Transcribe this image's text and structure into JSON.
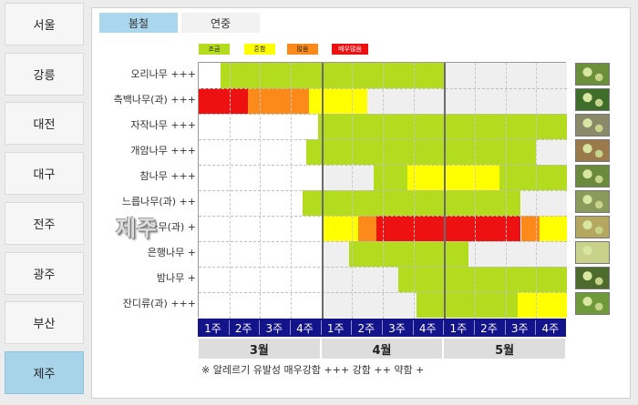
{
  "sidebar": {
    "cities": [
      {
        "label": "서울",
        "active": false
      },
      {
        "label": "강릉",
        "active": false
      },
      {
        "label": "대전",
        "active": false
      },
      {
        "label": "대구",
        "active": false
      },
      {
        "label": "전주",
        "active": false
      },
      {
        "label": "광주",
        "active": false
      },
      {
        "label": "부산",
        "active": false
      },
      {
        "label": "제주",
        "active": true
      }
    ]
  },
  "tabs": [
    {
      "label": "봄철",
      "active": true
    },
    {
      "label": "연중",
      "active": false
    }
  ],
  "legend": [
    {
      "label": "조금",
      "color": "#b4dc1e"
    },
    {
      "label": "흔함",
      "color": "#ffff00"
    },
    {
      "label": "많음",
      "color": "#fb8a1a"
    },
    {
      "label": "매우많음",
      "color": "#ee1111"
    }
  ],
  "colors": {
    "none": "#ffffff",
    "unrecorded": "#efefef"
  },
  "weeks": [
    "1주",
    "2주",
    "3주",
    "4주",
    "1주",
    "2주",
    "3주",
    "4주",
    "1주",
    "2주",
    "3주",
    "4주"
  ],
  "months": [
    "3월",
    "4월",
    "5월"
  ],
  "watermark": "제주",
  "plants": [
    {
      "label": "오리나무 +++",
      "icon": "alder-photo-icon",
      "segments": [
        [
          "none",
          0,
          0.7
        ],
        [
          "green",
          0.7,
          8.0
        ],
        [
          "gray",
          8.0,
          12
        ]
      ]
    },
    {
      "label": "측백나무(과) +++",
      "icon": "arborvitae-photo-icon",
      "segments": [
        [
          "red",
          0,
          1.6
        ],
        [
          "orange",
          1.6,
          3.6
        ],
        [
          "yellow",
          3.6,
          5.5
        ],
        [
          "gray",
          5.5,
          12
        ]
      ]
    },
    {
      "label": "자작나무 +++",
      "icon": "birch-photo-icon",
      "segments": [
        [
          "none",
          0,
          3.9
        ],
        [
          "green",
          3.9,
          12
        ]
      ]
    },
    {
      "label": "개암나무 +++",
      "icon": "hazel-photo-icon",
      "segments": [
        [
          "none",
          0,
          3.5
        ],
        [
          "green",
          3.5,
          11.0
        ],
        [
          "gray",
          11.0,
          12
        ]
      ]
    },
    {
      "label": "참나무 +++",
      "icon": "oak-photo-icon",
      "segments": [
        [
          "none",
          0,
          4.0
        ],
        [
          "gray",
          4.0,
          5.7
        ],
        [
          "green",
          5.7,
          6.8
        ],
        [
          "yellow",
          6.8,
          9.8
        ],
        [
          "green",
          9.8,
          12
        ]
      ]
    },
    {
      "label": "느릅나무(과) ++",
      "icon": "elm-photo-icon",
      "segments": [
        [
          "none",
          0,
          3.4
        ],
        [
          "green",
          3.4,
          10.5
        ],
        [
          "gray",
          10.5,
          12
        ]
      ]
    },
    {
      "label": "소나무(과) +",
      "icon": "pine-photo-icon",
      "segments": [
        [
          "none",
          0,
          4.0
        ],
        [
          "yellow",
          4.0,
          5.2
        ],
        [
          "orange",
          5.2,
          5.8
        ],
        [
          "red",
          5.8,
          10.5
        ],
        [
          "orange",
          10.5,
          11.1
        ],
        [
          "yellow",
          11.1,
          12
        ]
      ]
    },
    {
      "label": "은행나무 +",
      "icon": "ginkgo-photo-icon",
      "segments": [
        [
          "none",
          0,
          4.0
        ],
        [
          "gray",
          4.0,
          4.9
        ],
        [
          "green",
          4.9,
          8.8
        ],
        [
          "gray",
          8.8,
          12
        ]
      ]
    },
    {
      "label": "밤나무 +",
      "icon": "chestnut-photo-icon",
      "segments": [
        [
          "none",
          0,
          4.0
        ],
        [
          "gray",
          4.0,
          6.5
        ],
        [
          "green",
          6.5,
          12
        ]
      ]
    },
    {
      "label": "잔디류(과) +++",
      "icon": "grass-photo-icon",
      "segments": [
        [
          "none",
          0,
          4.0
        ],
        [
          "gray",
          4.0,
          7.1
        ],
        [
          "green",
          7.1,
          10.4
        ],
        [
          "yellow",
          10.4,
          12
        ]
      ]
    }
  ],
  "footer": "※ 알레르기 유발성  매우강함 +++   강함 ++    약함 +"
}
